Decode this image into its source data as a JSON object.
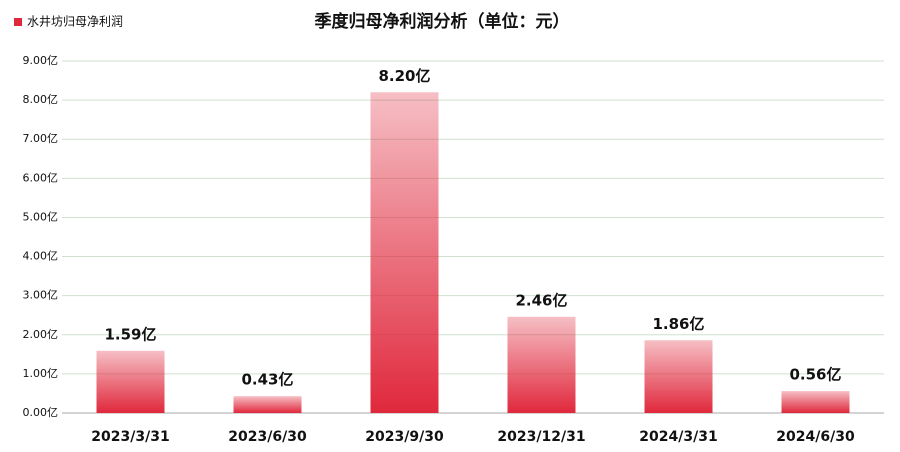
{
  "chart_data": {
    "type": "bar",
    "title": "季度归母净利润分析（单位：元）",
    "legend": "水井坊归母净利润",
    "color": "#e0283c",
    "categories": [
      "2023/3/31",
      "2023/6/30",
      "2023/9/30",
      "2023/12/31",
      "2024/3/31",
      "2024/6/30"
    ],
    "values": [
      1.59,
      0.43,
      8.2,
      2.46,
      1.86,
      0.56
    ],
    "value_labels": [
      "1.59亿",
      "0.43亿",
      "8.20亿",
      "2.46亿",
      "1.86亿",
      "0.56亿"
    ],
    "ylim": [
      0,
      9
    ],
    "yticks": [
      {
        "value": 0,
        "label": "0.00亿"
      },
      {
        "value": 1,
        "label": "1.00亿"
      },
      {
        "value": 2,
        "label": "2.00亿"
      },
      {
        "value": 3,
        "label": "3.00亿"
      },
      {
        "value": 4,
        "label": "4.00亿"
      },
      {
        "value": 5,
        "label": "5.00亿"
      },
      {
        "value": 6,
        "label": "6.00亿"
      },
      {
        "value": 7,
        "label": "7.00亿"
      },
      {
        "value": 8,
        "label": "8.00亿"
      },
      {
        "value": 9,
        "label": "9.00亿"
      }
    ],
    "grid": true
  }
}
